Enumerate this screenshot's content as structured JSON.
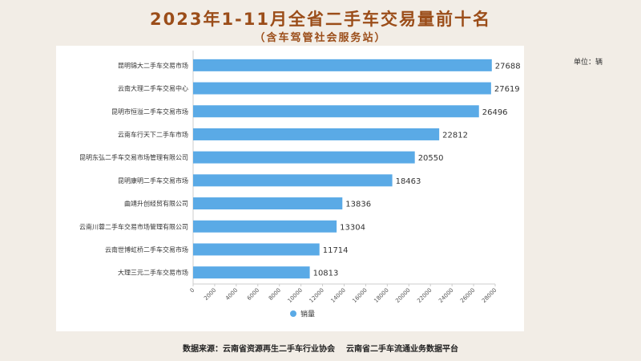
{
  "title": "2023年1-11月全省二手车交易量前十名",
  "subtitle": "（含车驾管社会服务站）",
  "unit_label": "单位：辆",
  "source_label": "数据来源：云南省资源再生二手车行业协会",
  "source_label2": "云南省二手车流通业务数据平台",
  "colors": {
    "bar": "#5aaae6",
    "title": "#9b4d19",
    "background": "#f2ede6"
  },
  "chart_data": {
    "type": "bar",
    "orientation": "horizontal",
    "categories": [
      "昆明锦大二手车交易市场",
      "云南大理二手车交易中心",
      "昆明市恒溢二手车交易市场",
      "云南车行天下二手车市场",
      "昆明东弘二手车交易市场管理有限公司",
      "昆明康明二手车交易市场",
      "曲靖升创经贸有限公司",
      "云南川蓉二手车交易市场管理有限公司",
      "云南世博虹桥二手车交易市场",
      "大理三元二手车交易市场"
    ],
    "series": [
      {
        "name": "销量",
        "values": [
          27688,
          27619,
          26496,
          22812,
          20550,
          18463,
          13836,
          13304,
          11714,
          10813
        ]
      }
    ],
    "xlim": [
      0,
      28000
    ],
    "ticks": [
      0,
      2000,
      4000,
      6000,
      8000,
      10000,
      12000,
      14000,
      16000,
      18000,
      20000,
      22000,
      24000,
      26000,
      28000
    ],
    "legend_position": "bottom-center",
    "grid": false
  }
}
